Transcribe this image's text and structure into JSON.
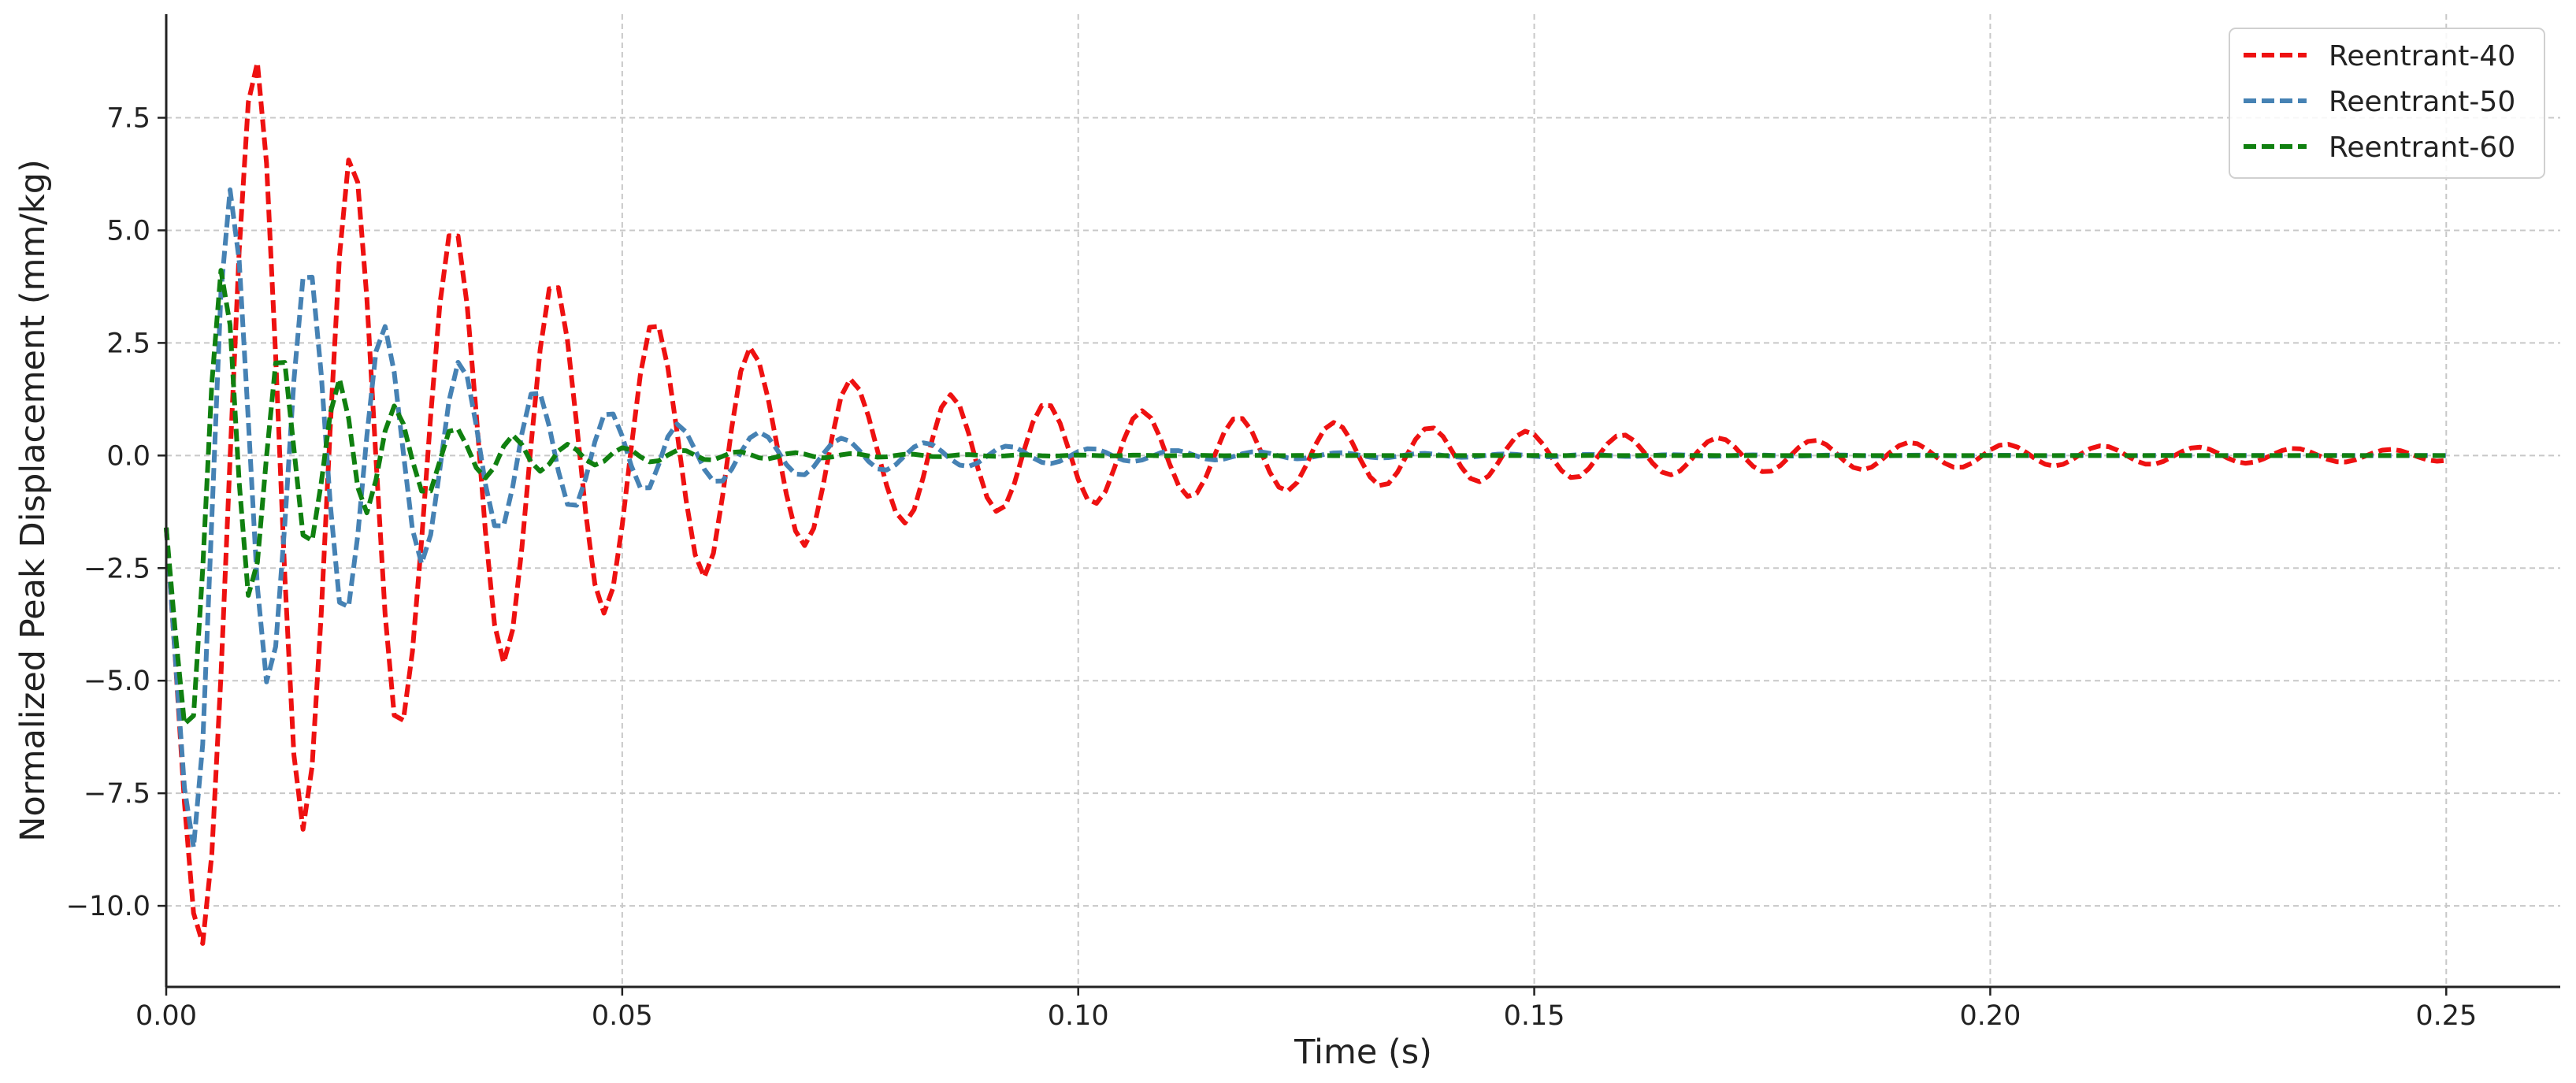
{
  "chart_data": {
    "type": "line",
    "title": "",
    "xlabel": "Time (s)",
    "ylabel": "Normalized Peak Displacement (mm/kg)",
    "xlim": [
      0.0,
      0.2625
    ],
    "ylim": [
      -11.8,
      9.8
    ],
    "grid": true,
    "legend_position": "top-right",
    "x_ticks": [
      0.0,
      0.05,
      0.1,
      0.15,
      0.2,
      0.25
    ],
    "x_tick_labels": [
      "0.00",
      "0.05",
      "0.10",
      "0.15",
      "0.20",
      "0.25"
    ],
    "y_ticks": [
      -10.0,
      -7.5,
      -5.0,
      -2.5,
      0.0,
      2.5,
      5.0,
      7.5
    ],
    "y_tick_labels": [
      "−10.0",
      "−7.5",
      "−5.0",
      "−2.5",
      "0.0",
      "2.5",
      "5.0",
      "7.5"
    ],
    "sample_count": 251,
    "time_end": 0.25,
    "series": [
      {
        "name": "Reentrant-40",
        "color": "#ee1111",
        "initial": -1.6,
        "peak_times": [
          0.0038,
          0.0098,
          0.015,
          0.0203,
          0.0255,
          0.0315,
          0.037,
          0.0425,
          0.048,
          0.0535,
          0.059,
          0.064,
          0.07,
          0.075,
          0.081,
          0.086
        ],
        "peak_values": [
          -10.9,
          8.8,
          -8.3,
          6.7,
          -6.1,
          5.1,
          -4.6,
          3.9,
          -3.5,
          3.0,
          -2.7,
          2.4,
          -2.0,
          1.7,
          -1.5,
          1.35
        ],
        "freq_tail": 95,
        "decay_tail": 14.5
      },
      {
        "name": "Reentrant-50",
        "color": "#4682b4",
        "initial": -1.6,
        "peak_times": [
          0.003,
          0.007,
          0.0112,
          0.0155,
          0.0195,
          0.0238,
          0.028,
          0.0322,
          0.0365,
          0.0405,
          0.0445,
          0.0485,
          0.0525,
          0.056
        ],
        "peak_values": [
          -8.7,
          5.9,
          -5.1,
          4.3,
          -3.6,
          2.9,
          -2.4,
          2.1,
          -1.7,
          1.5,
          -1.2,
          1.0,
          -0.8,
          0.7
        ],
        "freq_tail": 110,
        "decay_tail": 33
      },
      {
        "name": "Reentrant-60",
        "color": "#108010",
        "initial": -1.6,
        "peak_times": [
          0.0025,
          0.0062,
          0.0092,
          0.0125,
          0.0155,
          0.019,
          0.0218,
          0.025,
          0.0285,
          0.0315,
          0.035,
          0.038,
          0.041,
          0.044
        ],
        "peak_values": [
          -6.3,
          4.2,
          -3.2,
          2.4,
          -2.1,
          1.7,
          -1.3,
          1.1,
          -0.9,
          0.65,
          -0.5,
          0.45,
          -0.35,
          0.25
        ],
        "freq_tail": 160,
        "decay_tail": 55
      }
    ]
  }
}
